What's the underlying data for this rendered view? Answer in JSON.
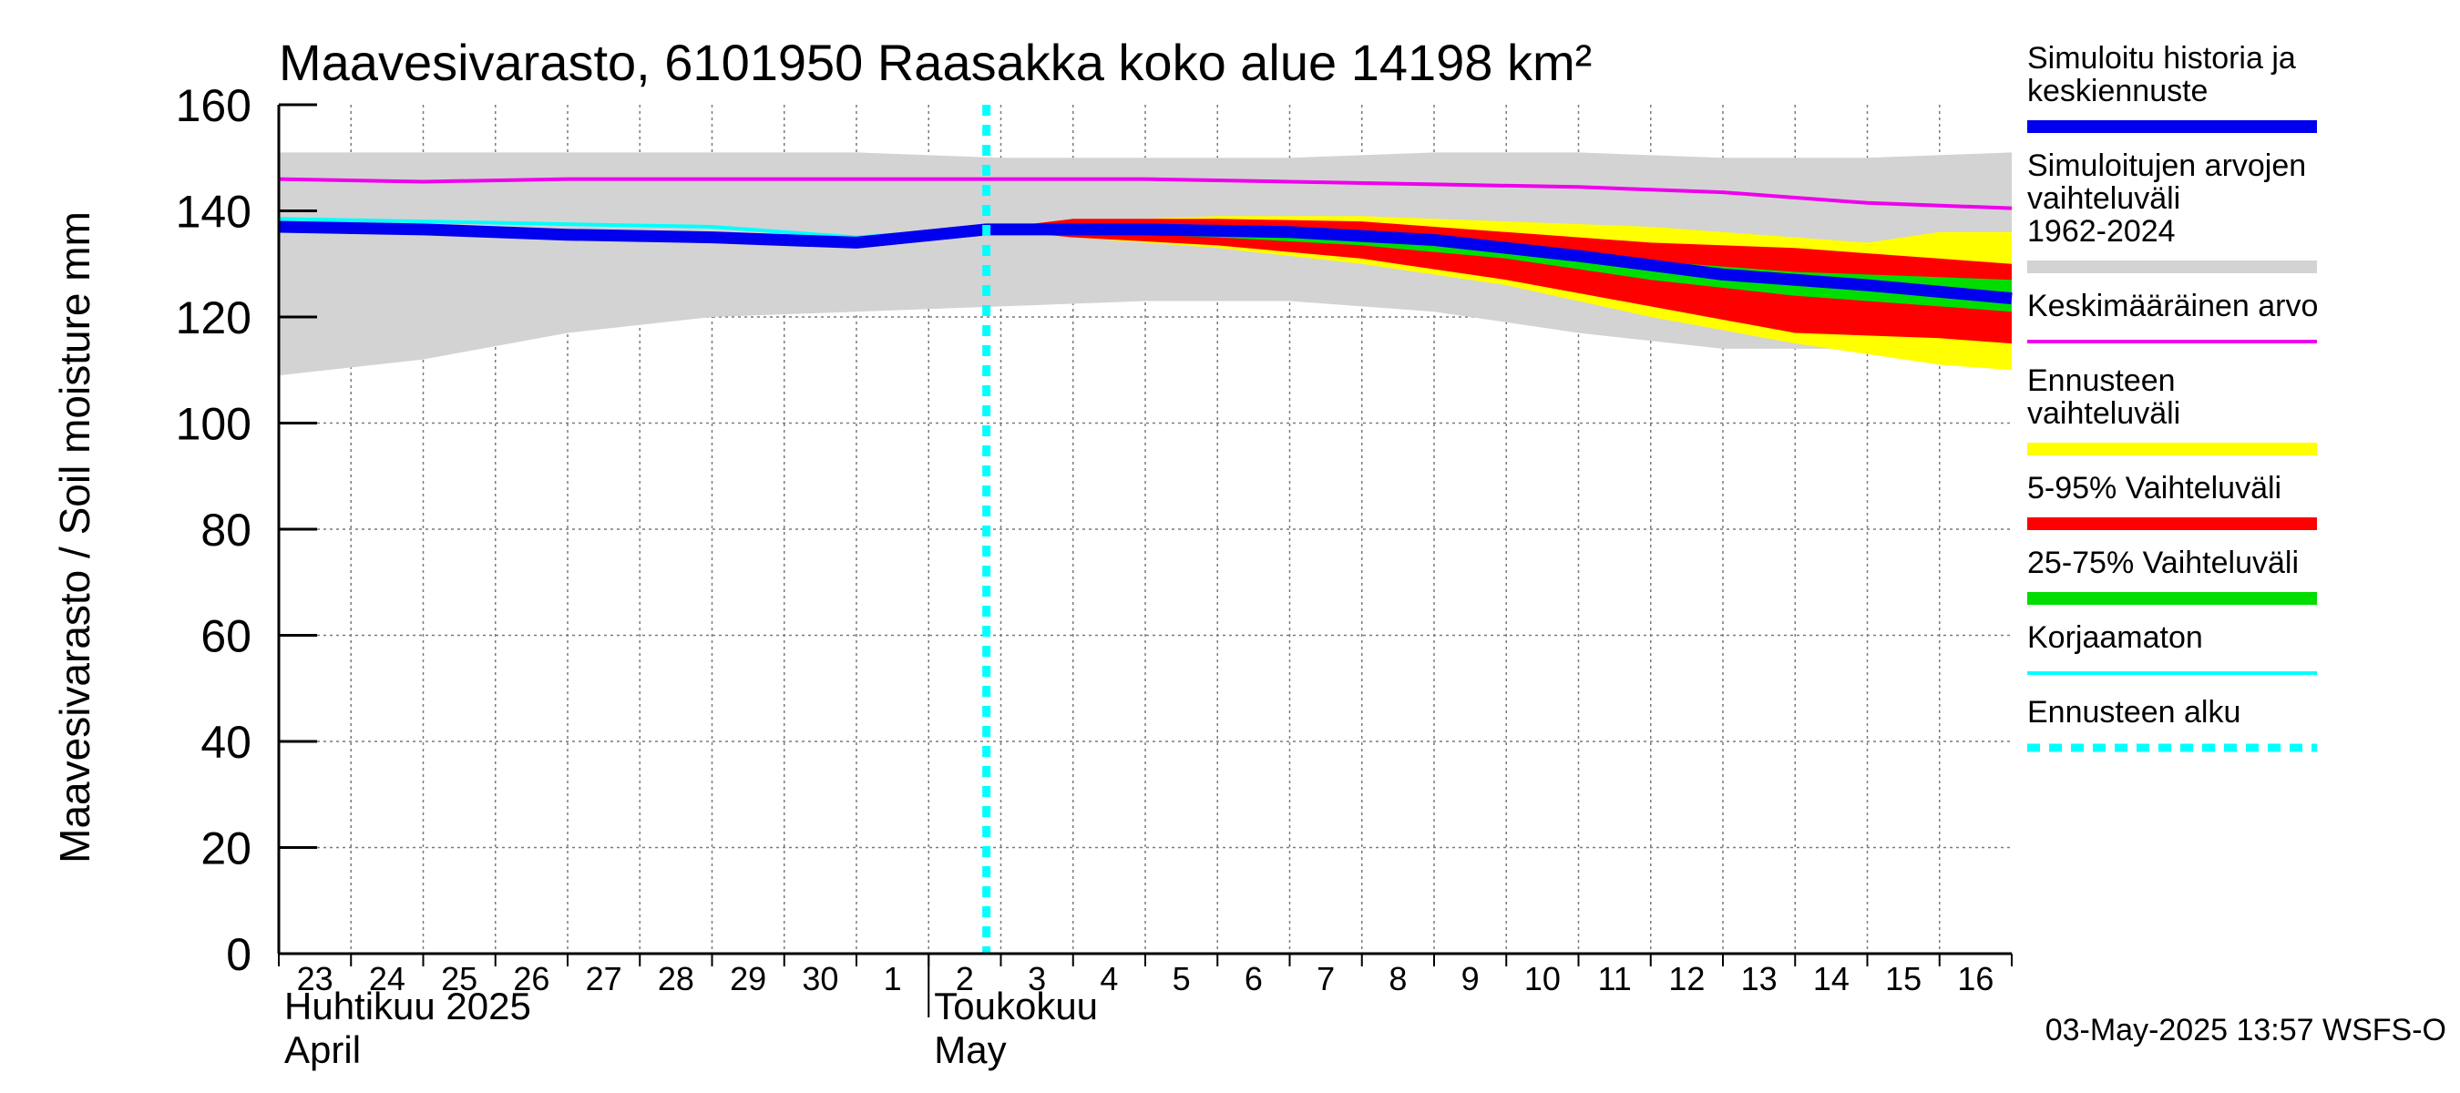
{
  "chart_data": {
    "type": "area",
    "title": "Maavesivarasto, 6101950 Raasakka koko alue 14198 km²",
    "ylabel": "Maavesivarasto / Soil moisture   mm",
    "ylim": [
      0,
      160
    ],
    "yticks": [
      0,
      20,
      40,
      60,
      80,
      100,
      120,
      140,
      160
    ],
    "x_start_day": 23,
    "x_end_day": 47,
    "day_labels": [
      "23",
      "24",
      "25",
      "26",
      "27",
      "28",
      "29",
      "30",
      "1",
      "2",
      "3",
      "4",
      "5",
      "6",
      "7",
      "8",
      "9",
      "10",
      "11",
      "12",
      "13",
      "14",
      "15",
      "16"
    ],
    "month_labels": [
      {
        "fi": "Huhtikuu  2025",
        "en": "April",
        "day": 23
      },
      {
        "fi": "Toukokuu",
        "en": "May",
        "day": 32
      }
    ],
    "forecast_start_day": 32.8,
    "series": [
      {
        "name": "Simuloitujen arvojen vaihteluväli 1962-2024",
        "color": "#d3d3d3",
        "kind": "band",
        "x": [
          23,
          25,
          27,
          29,
          31,
          33,
          35,
          37,
          39,
          41,
          43,
          45,
          47
        ],
        "low": [
          109,
          112,
          117,
          120,
          121,
          122,
          123,
          123,
          121,
          117,
          114,
          114,
          117
        ],
        "high": [
          151,
          151,
          151,
          151,
          151,
          150,
          150,
          150,
          151,
          151,
          150,
          150,
          151
        ]
      },
      {
        "name": "Ennusteen vaihteluväli",
        "color": "#ffff00",
        "kind": "band",
        "x": [
          32.8,
          34,
          36,
          38,
          40,
          42,
          44,
          45,
          46,
          47
        ],
        "low": [
          136.5,
          135,
          133,
          130,
          126,
          120,
          115,
          113,
          111,
          110
        ],
        "high": [
          136.5,
          138,
          139,
          139,
          138,
          137,
          135,
          134,
          136,
          136
        ]
      },
      {
        "name": "5-95% Vaihteluväli",
        "color": "#ff0000",
        "kind": "band",
        "x": [
          32.8,
          34,
          36,
          38,
          40,
          42,
          44,
          45,
          46,
          47
        ],
        "low": [
          136.5,
          135,
          133.5,
          131,
          127,
          122,
          117,
          116.5,
          116,
          115
        ],
        "high": [
          136.5,
          138.5,
          138.5,
          138,
          136,
          134,
          133,
          132,
          131,
          130
        ]
      },
      {
        "name": "25-75% Vaihteluväli",
        "color": "#00dd00",
        "kind": "band",
        "x": [
          32.8,
          34,
          36,
          38,
          40,
          42,
          44,
          45,
          46,
          47
        ],
        "low": [
          136.5,
          136,
          135,
          133.5,
          131,
          127,
          124,
          123,
          122,
          121
        ],
        "high": [
          136.5,
          137.5,
          137,
          136,
          133.5,
          130.5,
          128.5,
          128,
          127.5,
          127
        ]
      },
      {
        "name": "Keskimääräinen arvo",
        "color": "#ee00ee",
        "kind": "line",
        "x": [
          23,
          25,
          27,
          29,
          31,
          33,
          35,
          37,
          39,
          41,
          43,
          45,
          47
        ],
        "values": [
          146,
          145.5,
          146,
          146,
          146,
          146,
          146,
          145.5,
          145,
          144.5,
          143.5,
          141.5,
          140.5
        ]
      },
      {
        "name": "Korjaamaton",
        "color": "#00ffff",
        "kind": "line",
        "x": [
          23,
          25,
          27,
          29,
          31,
          33,
          35,
          37,
          39,
          41,
          43,
          45,
          47
        ],
        "values": [
          138.5,
          138,
          137.5,
          137,
          135,
          137,
          137,
          136.5,
          135,
          132,
          128.5,
          126,
          123.5
        ]
      },
      {
        "name": "Simuloitu historia ja keskiennuste",
        "color": "#0000ee",
        "kind": "line",
        "x": [
          23,
          25,
          27,
          29,
          31,
          32.8,
          35,
          37,
          39,
          41,
          43,
          45,
          47
        ],
        "values": [
          137,
          136.5,
          135.5,
          135,
          134,
          136.5,
          136.5,
          136,
          134.5,
          131.5,
          128,
          126,
          123.5
        ]
      }
    ],
    "legend": [
      {
        "label": "Simuloitu historia ja keskiennuste",
        "color": "#0000ee",
        "style": "thick"
      },
      {
        "label": "Simuloitujen arvojen vaihteluväli 1962-2024",
        "color": "#d3d3d3",
        "style": "thick"
      },
      {
        "label": "Keskimääräinen arvo",
        "color": "#ee00ee",
        "style": "thin"
      },
      {
        "label": "Ennusteen vaihteluväli",
        "color": "#ffff00",
        "style": "thick"
      },
      {
        "label": "5-95% Vaihteluväli",
        "color": "#ff0000",
        "style": "thick"
      },
      {
        "label": "25-75% Vaihteluväli",
        "color": "#00dd00",
        "style": "thick"
      },
      {
        "label": "Korjaamaton",
        "color": "#00ffff",
        "style": "thin"
      },
      {
        "label": "Ennusteen alku",
        "color": "#00ffff",
        "style": "dashed"
      }
    ],
    "timestamp": "03-May-2025 13:57 WSFS-O"
  }
}
